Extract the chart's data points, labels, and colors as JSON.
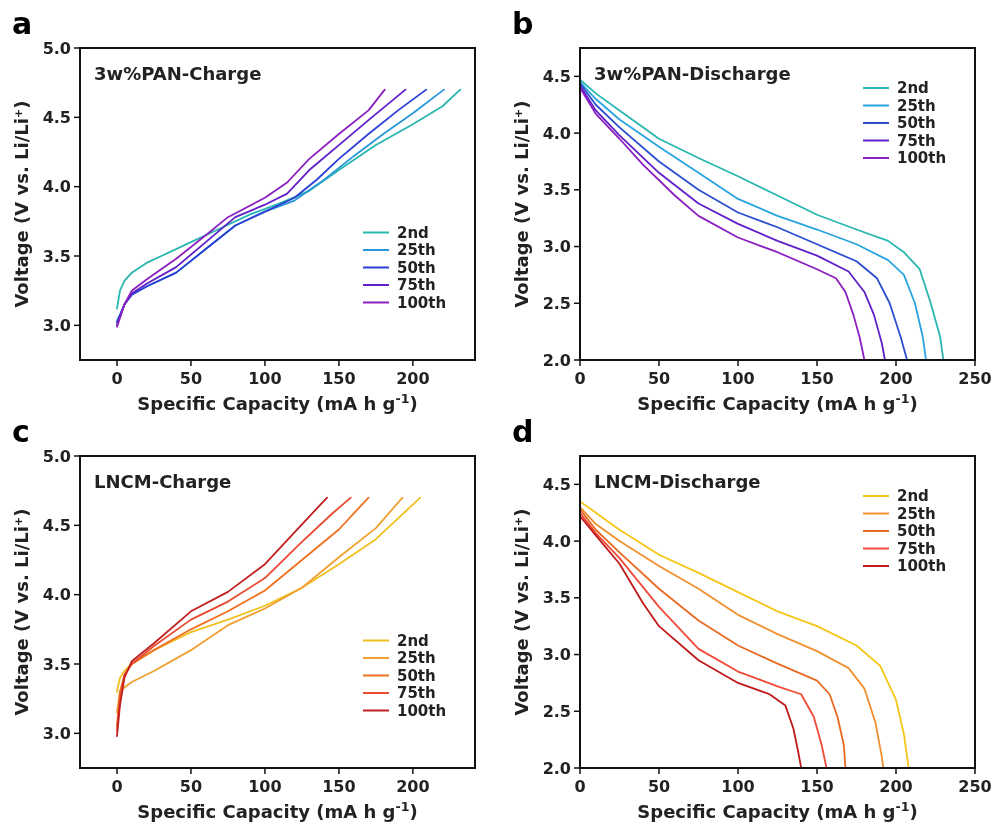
{
  "chart_data": [
    {
      "type": "line",
      "title": "3w%PAN-Charge",
      "annotations": [
        "a"
      ],
      "xlabel": "Specific Capacity (mA h g$^{-1}$)",
      "ylabel": "Voltage (V vs. Li/Li⁺)",
      "xlim": [
        -25,
        242
      ],
      "ylim": [
        2.75,
        5.0
      ],
      "xticks": [
        0,
        50,
        100,
        150,
        200
      ],
      "yticks": [
        {
          "value": 3,
          "label": "3.0"
        },
        3.5,
        {
          "value": 4,
          "label": "4.0"
        },
        4.5,
        {
          "value": 5,
          "label": "5.0"
        }
      ],
      "legend": "bottom right",
      "grid": false,
      "marker": "none",
      "line_style": "solid",
      "series": [
        {
          "name": "2nd",
          "color": "#29b6b0",
          "x": [
            0,
            2,
            5,
            10,
            20,
            30,
            50,
            70,
            90,
            110,
            130,
            150,
            175,
            200,
            220,
            232
          ],
          "values": [
            3.12,
            3.25,
            3.32,
            3.38,
            3.45,
            3.5,
            3.6,
            3.7,
            3.8,
            3.88,
            3.97,
            4.12,
            4.3,
            4.45,
            4.58,
            4.7
          ]
        },
        {
          "name": "25th",
          "color": "#2a98d8",
          "x": [
            0,
            5,
            10,
            20,
            40,
            60,
            80,
            100,
            120,
            140,
            160,
            180,
            200,
            221
          ],
          "values": [
            3.03,
            3.15,
            3.22,
            3.28,
            3.38,
            3.55,
            3.72,
            3.82,
            3.9,
            4.05,
            4.22,
            4.38,
            4.53,
            4.7
          ]
        },
        {
          "name": "50th",
          "color": "#2b3fd4",
          "x": [
            0,
            5,
            10,
            20,
            40,
            60,
            80,
            100,
            120,
            135,
            150,
            170,
            190,
            209
          ],
          "values": [
            3.02,
            3.15,
            3.22,
            3.28,
            3.38,
            3.55,
            3.72,
            3.82,
            3.92,
            4.05,
            4.2,
            4.38,
            4.55,
            4.7
          ]
        },
        {
          "name": "75th",
          "color": "#6020c8",
          "x": [
            0,
            5,
            10,
            20,
            40,
            60,
            80,
            100,
            115,
            130,
            150,
            170,
            195
          ],
          "values": [
            3.0,
            3.15,
            3.23,
            3.3,
            3.42,
            3.6,
            3.78,
            3.87,
            3.95,
            4.12,
            4.3,
            4.48,
            4.7
          ]
        },
        {
          "name": "100th",
          "color": "#8b1fbf",
          "x": [
            0,
            5,
            10,
            20,
            40,
            60,
            75,
            100,
            115,
            130,
            150,
            170,
            181
          ],
          "values": [
            2.99,
            3.15,
            3.25,
            3.33,
            3.48,
            3.65,
            3.78,
            3.92,
            4.03,
            4.2,
            4.38,
            4.55,
            4.7
          ]
        }
      ]
    },
    {
      "type": "line",
      "title": "3w%PAN-Discharge",
      "annotations": [
        "b"
      ],
      "xlabel": "Specific Capacity (mA h g$^{-1}$)",
      "ylabel": "Voltage (V vs. Li/Li⁺)",
      "xlim": [
        0,
        250
      ],
      "ylim": [
        2.0,
        4.75
      ],
      "xticks": [
        0,
        50,
        100,
        150,
        200,
        250
      ],
      "yticks": [
        {
          "value": 2,
          "label": "2.0"
        },
        2.5,
        {
          "value": 3,
          "label": "3.0"
        },
        3.5,
        {
          "value": 4,
          "label": "4.0"
        },
        4.5
      ],
      "legend": "top right",
      "grid": false,
      "marker": "none",
      "line_style": "solid",
      "series": [
        {
          "name": "2nd",
          "color": "#29b6b0",
          "x": [
            0,
            10,
            25,
            50,
            75,
            100,
            125,
            150,
            175,
            195,
            205,
            215,
            222,
            228,
            230
          ],
          "values": [
            4.47,
            4.35,
            4.2,
            3.95,
            3.78,
            3.62,
            3.45,
            3.28,
            3.15,
            3.05,
            2.95,
            2.8,
            2.5,
            2.2,
            2.0
          ]
        },
        {
          "name": "25th",
          "color": "#28a4e0",
          "x": [
            0,
            10,
            25,
            50,
            75,
            100,
            125,
            150,
            175,
            195,
            205,
            212,
            217,
            219
          ],
          "values": [
            4.45,
            4.3,
            4.12,
            3.88,
            3.65,
            3.42,
            3.27,
            3.15,
            3.02,
            2.88,
            2.75,
            2.5,
            2.2,
            2.0
          ]
        },
        {
          "name": "50th",
          "color": "#2b4fd0",
          "x": [
            0,
            10,
            25,
            50,
            75,
            100,
            125,
            150,
            175,
            188,
            196,
            203,
            207
          ],
          "values": [
            4.44,
            4.25,
            4.05,
            3.75,
            3.5,
            3.3,
            3.17,
            3.02,
            2.87,
            2.72,
            2.5,
            2.2,
            2.0
          ]
        },
        {
          "name": "75th",
          "color": "#6020c8",
          "x": [
            0,
            10,
            25,
            50,
            75,
            100,
            125,
            150,
            170,
            180,
            186,
            191,
            193
          ],
          "values": [
            4.42,
            4.2,
            3.98,
            3.65,
            3.38,
            3.2,
            3.05,
            2.92,
            2.78,
            2.6,
            2.4,
            2.15,
            2.0
          ]
        },
        {
          "name": "100th",
          "color": "#8b1fbf",
          "x": [
            0,
            10,
            25,
            40,
            60,
            75,
            100,
            125,
            150,
            162,
            168,
            173,
            177,
            180
          ],
          "values": [
            4.4,
            4.17,
            3.95,
            3.72,
            3.45,
            3.27,
            3.08,
            2.95,
            2.8,
            2.72,
            2.6,
            2.4,
            2.2,
            2.0
          ]
        }
      ]
    },
    {
      "type": "line",
      "title": "LNCM-Charge",
      "annotations": [
        "c"
      ],
      "xlabel": "Specific Capacity (mA h g$^{-1}$)",
      "ylabel": "Voltage (V vs. Li/Li⁺)",
      "xlim": [
        -25,
        242
      ],
      "ylim": [
        2.75,
        5.0
      ],
      "xticks": [
        0,
        50,
        100,
        150,
        200
      ],
      "yticks": [
        {
          "value": 3,
          "label": "3.0"
        },
        3.5,
        {
          "value": 4,
          "label": "4.0"
        },
        4.5,
        {
          "value": 5,
          "label": "5.0"
        }
      ],
      "legend": "bottom right",
      "grid": false,
      "marker": "none",
      "line_style": "solid",
      "series": [
        {
          "name": "2nd",
          "color": "#f0c020",
          "x": [
            0,
            2,
            5,
            10,
            25,
            50,
            75,
            100,
            125,
            150,
            175,
            190,
            205
          ],
          "values": [
            3.3,
            3.4,
            3.45,
            3.5,
            3.6,
            3.73,
            3.82,
            3.92,
            4.05,
            4.22,
            4.4,
            4.55,
            4.7
          ]
        },
        {
          "name": "25th",
          "color": "#f0a030",
          "x": [
            0,
            2,
            5,
            10,
            25,
            50,
            75,
            100,
            125,
            150,
            175,
            193
          ],
          "values": [
            3.15,
            3.3,
            3.33,
            3.37,
            3.45,
            3.6,
            3.78,
            3.9,
            4.05,
            4.27,
            4.48,
            4.7
          ]
        },
        {
          "name": "50th",
          "color": "#f07020",
          "x": [
            0,
            2,
            5,
            10,
            25,
            50,
            75,
            100,
            125,
            150,
            170
          ],
          "values": [
            3.05,
            3.3,
            3.42,
            3.5,
            3.6,
            3.75,
            3.88,
            4.03,
            4.25,
            4.47,
            4.7
          ]
        },
        {
          "name": "75th",
          "color": "#e84a30",
          "x": [
            0,
            2,
            5,
            10,
            25,
            50,
            75,
            100,
            125,
            145,
            158
          ],
          "values": [
            3.02,
            3.25,
            3.42,
            3.5,
            3.63,
            3.82,
            3.95,
            4.12,
            4.38,
            4.58,
            4.7
          ]
        },
        {
          "name": "100th",
          "color": "#c02020",
          "x": [
            0,
            2,
            5,
            10,
            25,
            50,
            75,
            100,
            120,
            142
          ],
          "values": [
            2.98,
            3.2,
            3.4,
            3.52,
            3.65,
            3.88,
            4.02,
            4.22,
            4.45,
            4.7
          ]
        }
      ]
    },
    {
      "type": "line",
      "title": "LNCM-Discharge",
      "annotations": [
        "d"
      ],
      "xlabel": "Specific Capacity (mA h g$^{-1}$)",
      "ylabel": "Voltage (V vs. Li/Li⁺)",
      "xlim": [
        0,
        250
      ],
      "ylim": [
        2.0,
        4.75
      ],
      "xticks": [
        0,
        50,
        100,
        150,
        200,
        250
      ],
      "yticks": [
        {
          "value": 2,
          "label": "2.0"
        },
        2.5,
        {
          "value": 3,
          "label": "3.0"
        },
        3.5,
        {
          "value": 4,
          "label": "4.0"
        },
        4.5
      ],
      "legend": "top right",
      "grid": false,
      "marker": "none",
      "line_style": "solid",
      "series": [
        {
          "name": "2nd",
          "color": "#f5c518",
          "x": [
            0,
            10,
            25,
            50,
            75,
            100,
            125,
            150,
            175,
            190,
            200,
            205,
            208
          ],
          "values": [
            4.35,
            4.25,
            4.1,
            3.88,
            3.72,
            3.55,
            3.38,
            3.25,
            3.08,
            2.9,
            2.6,
            2.3,
            2.0
          ]
        },
        {
          "name": "25th",
          "color": "#f09030",
          "x": [
            0,
            10,
            25,
            50,
            75,
            100,
            125,
            150,
            170,
            180,
            187,
            191,
            192
          ],
          "values": [
            4.3,
            4.15,
            4.0,
            3.78,
            3.58,
            3.35,
            3.18,
            3.03,
            2.88,
            2.7,
            2.4,
            2.1,
            2.0
          ]
        },
        {
          "name": "50th",
          "color": "#e86a20",
          "x": [
            0,
            10,
            25,
            50,
            75,
            100,
            125,
            150,
            158,
            163,
            167,
            168
          ],
          "values": [
            4.28,
            4.1,
            3.9,
            3.58,
            3.3,
            3.08,
            2.92,
            2.77,
            2.65,
            2.45,
            2.2,
            2.0
          ]
        },
        {
          "name": "75th",
          "color": "#f04a3a",
          "x": [
            0,
            10,
            25,
            50,
            75,
            100,
            125,
            140,
            148,
            153,
            156
          ],
          "values": [
            4.25,
            4.07,
            3.85,
            3.42,
            3.05,
            2.85,
            2.72,
            2.65,
            2.45,
            2.2,
            2.0
          ]
        },
        {
          "name": "100th",
          "color": "#c01a1a",
          "x": [
            0,
            10,
            25,
            40,
            50,
            75,
            100,
            120,
            130,
            135,
            138,
            140
          ],
          "values": [
            4.22,
            4.05,
            3.8,
            3.45,
            3.25,
            2.95,
            2.75,
            2.65,
            2.55,
            2.35,
            2.15,
            2.0
          ]
        }
      ]
    }
  ]
}
